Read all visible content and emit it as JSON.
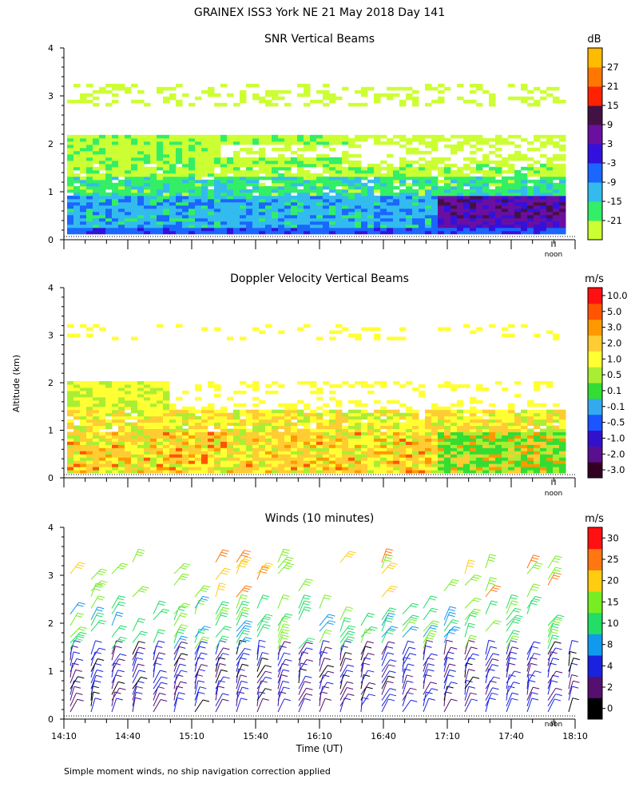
{
  "header": {
    "title": "GRAINEX ISS3 York NE  21 May 2018 Day 141"
  },
  "shared": {
    "ylabel": "Altitude (km)",
    "xlabel": "Time (UT)",
    "noon_label": "noon",
    "footnote": "Simple moment winds, no ship navigation correction applied"
  },
  "chart_data": [
    {
      "type": "heatmap",
      "title": "SNR Vertical Beams",
      "unit": "dB",
      "xlim": [
        "14:10",
        "18:10"
      ],
      "ylim": [
        0,
        4
      ],
      "yticks": [
        "0",
        "1",
        "2",
        "3",
        "4"
      ],
      "colorbar": {
        "labels": [
          "-21",
          "-15",
          "-9",
          "-3",
          "3",
          "9",
          "15",
          "21",
          "27"
        ],
        "colors": [
          "#ccff33",
          "#33ee66",
          "#33bbee",
          "#1a66ff",
          "#3311dd",
          "#6a0fa0",
          "#441144",
          "#ff2200",
          "#ff7700",
          "#ffbb00"
        ]
      },
      "layers": [
        {
          "altitude_km": [
            0.15,
            0.3
          ],
          "value_db": -3
        },
        {
          "altitude_km": [
            0.3,
            0.9
          ],
          "value_db": -9
        },
        {
          "altitude_km": [
            0.9,
            1.5
          ],
          "value_db": -15
        },
        {
          "altitude_km": [
            1.5,
            2.1
          ],
          "value_db": -21
        },
        {
          "altitude_km": [
            2.7,
            3.2
          ],
          "value_db": -21
        }
      ],
      "after_17_00": {
        "altitude_km": [
          0.2,
          0.9
        ],
        "value_db": 9
      }
    },
    {
      "type": "heatmap",
      "title": "Doppler Velocity Vertical Beams",
      "unit": "m/s",
      "xlim": [
        "14:10",
        "18:10"
      ],
      "ylim": [
        0,
        4
      ],
      "yticks": [
        "0",
        "1",
        "2",
        "3",
        "4"
      ],
      "colorbar": {
        "labels": [
          "10.0",
          "5.0",
          "3.0",
          "2.0",
          "1.0",
          "0.5",
          "0.1",
          "-0.1",
          "-0.5",
          "-1.0",
          "-2.0",
          "-3.0"
        ],
        "colors": [
          "#330022",
          "#5a0f8f",
          "#3311cc",
          "#1a55ff",
          "#33aaee",
          "#33dd33",
          "#aaee33",
          "#ffff33",
          "#ffcc33",
          "#ff9900",
          "#ff5500",
          "#ff1111"
        ]
      },
      "layers": [
        {
          "altitude_km": [
            0.1,
            1.4
          ],
          "value_ms": -0.5
        },
        {
          "altitude_km": [
            1.4,
            2.0
          ],
          "value_ms": -0.1
        }
      ],
      "after_17_00": {
        "altitude_km": [
          0.1,
          0.9
        ],
        "value_ms": 0.5
      }
    },
    {
      "type": "scatter",
      "title": "Winds (10 minutes)",
      "unit": "m/s",
      "xlim": [
        "14:10",
        "18:10"
      ],
      "ylim": [
        0,
        4
      ],
      "yticks": [
        "0",
        "1",
        "2",
        "3",
        "4"
      ],
      "x_tick_labels": [
        "14:10",
        "14:40",
        "15:10",
        "15:40",
        "16:10",
        "16:40",
        "17:10",
        "17:40",
        "18:10"
      ],
      "colorbar": {
        "labels": [
          "0",
          "2",
          "4",
          "8",
          "10",
          "15",
          "20",
          "25",
          "30"
        ],
        "colors": [
          "#000000",
          "#550f70",
          "#1a22dd",
          "#1199ee",
          "#22dd66",
          "#77ee22",
          "#ffcc11",
          "#ff7711",
          "#ff1111"
        ]
      },
      "wind_barbs": {
        "interval_min": 10,
        "speed_ms_below_1_4km": 6,
        "speed_ms_1_4_to_2_4km": 12,
        "speed_ms_above_2_5km": 20
      }
    }
  ]
}
